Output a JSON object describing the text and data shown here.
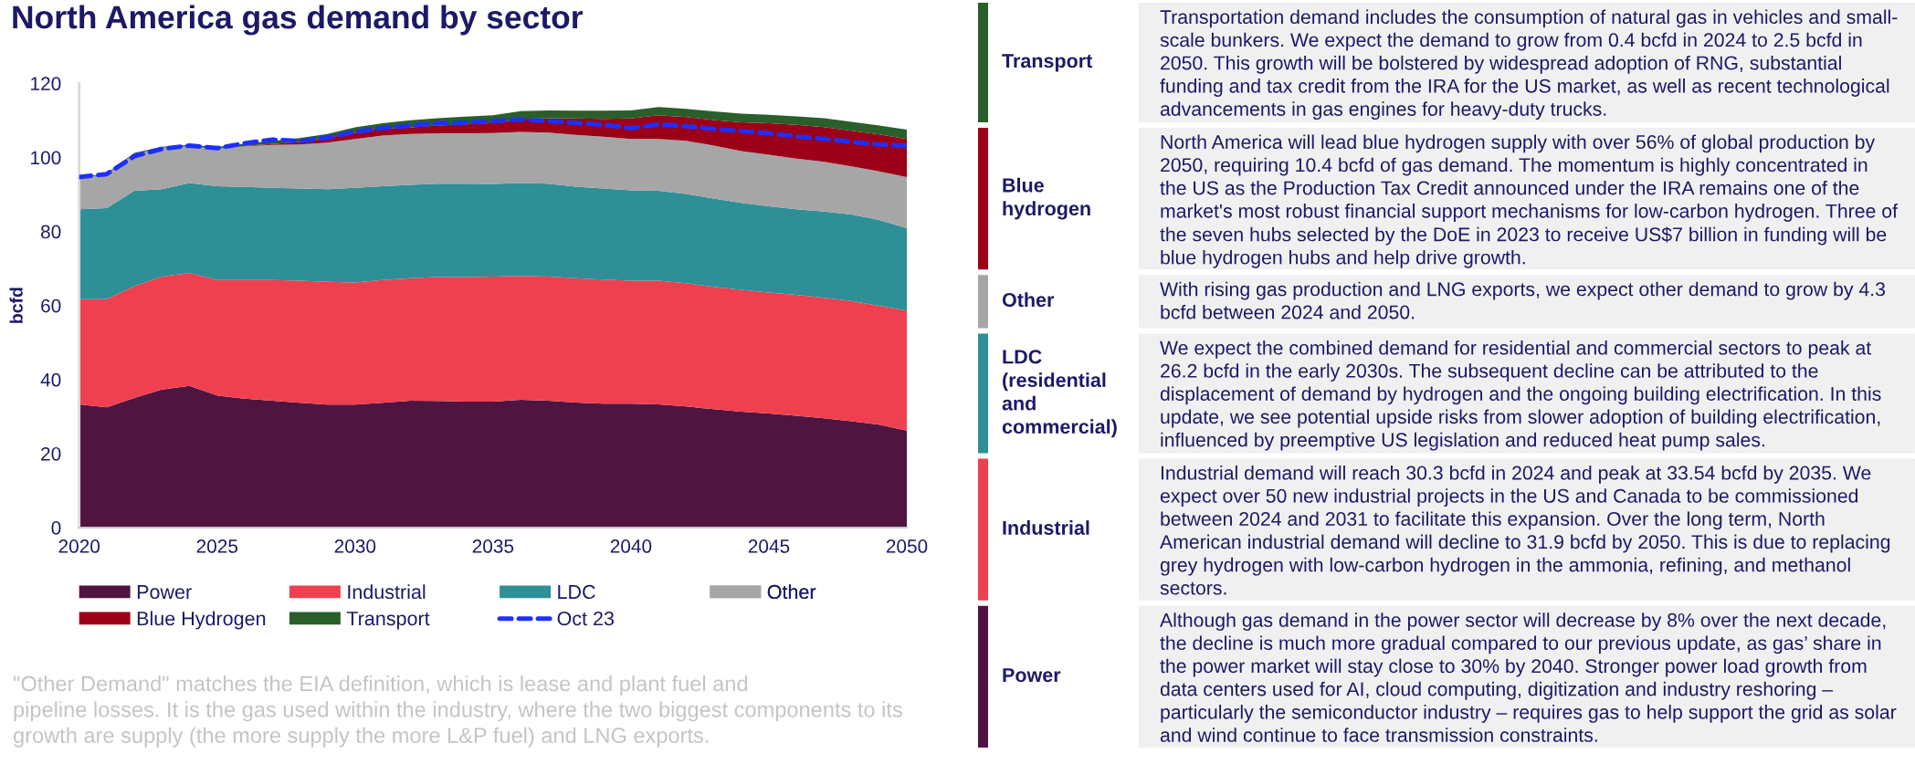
{
  "chart_data": [
    {
      "type": "area",
      "stacked": true,
      "title": "North America gas demand by sector",
      "ylabel": "bcfd",
      "x": [
        2020,
        2021,
        2022,
        2023,
        2024,
        2025,
        2026,
        2027,
        2028,
        2029,
        2030,
        2031,
        2032,
        2033,
        2034,
        2035,
        2036,
        2037,
        2038,
        2039,
        2040,
        2041,
        2042,
        2043,
        2044,
        2045,
        2046,
        2047,
        2048,
        2049,
        2050
      ],
      "xlim": [
        2020,
        2050
      ],
      "xticks": [
        2020,
        2025,
        2030,
        2035,
        2040,
        2045,
        2050
      ],
      "ylim": [
        0,
        120
      ],
      "yticks": [
        0,
        20,
        40,
        60,
        80,
        100,
        120
      ],
      "legend": "bottom",
      "series": [
        {
          "name": "Power",
          "color": "#4f1540",
          "values": [
            33.3,
            32.5,
            35.0,
            37.3,
            38.3,
            35.7,
            34.8,
            34.3,
            33.7,
            33.2,
            33.2,
            33.7,
            34.3,
            34.2,
            34.0,
            34.0,
            34.5,
            34.3,
            33.8,
            33.5,
            33.5,
            33.3,
            32.7,
            32.0,
            31.3,
            30.8,
            30.2,
            29.5,
            28.7,
            27.8,
            26.2
          ]
        },
        {
          "name": "Industrial",
          "color": "#ef4050",
          "values": [
            28.4,
            29.2,
            30.2,
            30.5,
            30.5,
            31.2,
            32.1,
            32.6,
            33.0,
            33.2,
            33.0,
            33.2,
            33.1,
            33.5,
            33.7,
            33.8,
            33.5,
            33.5,
            33.6,
            33.5,
            33.2,
            33.4,
            33.3,
            33.0,
            32.9,
            32.7,
            32.7,
            32.6,
            32.5,
            32.1,
            32.4
          ]
        },
        {
          "name": "LDC",
          "color": "#2e8f96",
          "values": [
            24.3,
            24.6,
            25.8,
            23.6,
            24.3,
            25.3,
            25.1,
            24.9,
            24.9,
            25.0,
            25.6,
            25.3,
            25.2,
            25.2,
            25.2,
            25.0,
            25.1,
            25.1,
            24.7,
            24.6,
            24.4,
            24.3,
            24.1,
            23.9,
            23.5,
            23.3,
            23.1,
            23.3,
            23.4,
            23.2,
            22.3
          ]
        },
        {
          "name": "Other",
          "color": "#a6a6a6",
          "values": [
            8.3,
            9.2,
            9.9,
            11.2,
            9.9,
            10.1,
            11.0,
            11.6,
            11.9,
            12.6,
            13.2,
            13.7,
            13.7,
            13.6,
            13.6,
            13.8,
            13.8,
            13.8,
            14.0,
            14.0,
            13.9,
            14.0,
            14.4,
            14.3,
            14.0,
            13.9,
            13.7,
            13.4,
            13.0,
            13.1,
            13.8
          ]
        },
        {
          "name": "Blue Hydrogen",
          "color": "#9c0018",
          "values": [
            0,
            0,
            0,
            0,
            0,
            0,
            0.1,
            0.2,
            0.7,
            1.3,
            1.7,
            1.9,
            1.8,
            2.1,
            2.4,
            2.7,
            3.5,
            3.9,
            4.4,
            4.8,
            5.5,
            6.4,
            6.4,
            6.9,
            7.8,
            8.5,
            9.1,
            9.4,
            9.6,
            10.0,
            10.3
          ]
        },
        {
          "name": "Transport",
          "color": "#2a5e2a",
          "values": [
            0.2,
            0.2,
            0.3,
            0.3,
            0.4,
            0.5,
            0.6,
            0.8,
            1.0,
            1.0,
            1.4,
            1.4,
            1.9,
            2.0,
            2.1,
            2.1,
            2.1,
            2.1,
            2.1,
            2.2,
            2.2,
            2.2,
            2.2,
            2.3,
            2.3,
            2.3,
            2.3,
            2.4,
            2.4,
            2.4,
            2.5
          ]
        },
        {
          "name": "Oct 23",
          "type": "line",
          "line_style": "dashed",
          "color": "#1f2fff",
          "values": [
            94.7,
            95.5,
            100.3,
            102.3,
            103.2,
            102.5,
            103.8,
            104.8,
            104.4,
            105.3,
            106.9,
            107.9,
            108.6,
            109.2,
            109.4,
            109.8,
            110.2,
            109.8,
            109.3,
            108.8,
            107.9,
            108.9,
            108.4,
            107.7,
            107.1,
            106.5,
            105.7,
            105.0,
            104.2,
            103.5,
            103.1
          ]
        }
      ],
      "annotations": [
        "\"Other Demand\" matches the EIA definition, which is lease and plant fuel and\npipeline losses. It is the gas used within the industry, where the two biggest components to its\ngrowth are supply (the more supply the more L&P fuel) and LNG exports."
      ]
    },
    {
      "type": "other",
      "categories": [
        "Transport",
        "Blue\nhydrogen",
        "Other",
        "LDC\n(residential\nand\ncommercial)",
        "Industrial",
        "Power"
      ],
      "colors": [
        "#2a5e2a",
        "#9c0018",
        "#a6a6a6",
        "#2e8f96",
        "#ef4050",
        "#4f1540"
      ],
      "annotations": [
        "Transportation demand includes the consumption of natural gas in vehicles and small-\nscale bunkers. We expect the demand to grow from 0.4 bcfd in 2024 to 2.5 bcfd in\n2050. This growth will be bolstered by widespread adoption of RNG, substantial\nfunding and tax credit from the IRA for the US market, as well as recent technological\nadvancements in gas engines for heavy-duty trucks.",
        "North America will lead blue hydrogen supply with over 56% of global production by\n2050, requiring 10.4 bcfd of gas demand. The momentum is highly concentrated in\nthe US as the Production Tax Credit announced under the IRA remains one of the\nmarket's most robust financial support mechanisms for low-carbon hydrogen. Three of\nthe seven hubs selected by the DoE in 2023 to receive US$7 billion in funding will be\nblue hydrogen hubs and help drive growth.",
        "With rising gas production and LNG exports, we expect other demand to grow by 4.3\nbcfd between 2024 and 2050.",
        "We expect the combined demand for residential and commercial sectors to peak at\n26.2 bcfd in the early 2030s. The subsequent decline can be attributed to the\ndisplacement of demand by hydrogen and the ongoing building electrification. In this\nupdate, we see potential upside risks from slower adoption of building electrification,\ninfluenced by preemptive US legislation and reduced heat pump sales.",
        "Industrial demand will reach 30.3 bcfd in 2024 and peak at 33.54 bcfd by 2035. We\nexpect over 50 new industrial projects in the US and Canada to be commissioned\nbetween 2024 and 2031 to facilitate this expansion. Over the long term, North\nAmerican industrial demand will decline to 31.9 bcfd by 2050. This is due to replacing\ngrey hydrogen with low-carbon hydrogen in the ammonia, refining, and methanol\nsectors.",
        "Although gas demand in the power sector will decrease by 8% over the next decade,\nthe decline is much more gradual compared to our previous update, as gas’ share in\nthe power market will stay close to 30% by 2040. Stronger power load growth from\ndata centers used for AI, cloud computing, digitization and industry reshoring –\nparticularly the semiconductor industry – requires gas to help support the grid as solar\nand wind continue to face transmission constraints."
      ]
    }
  ]
}
